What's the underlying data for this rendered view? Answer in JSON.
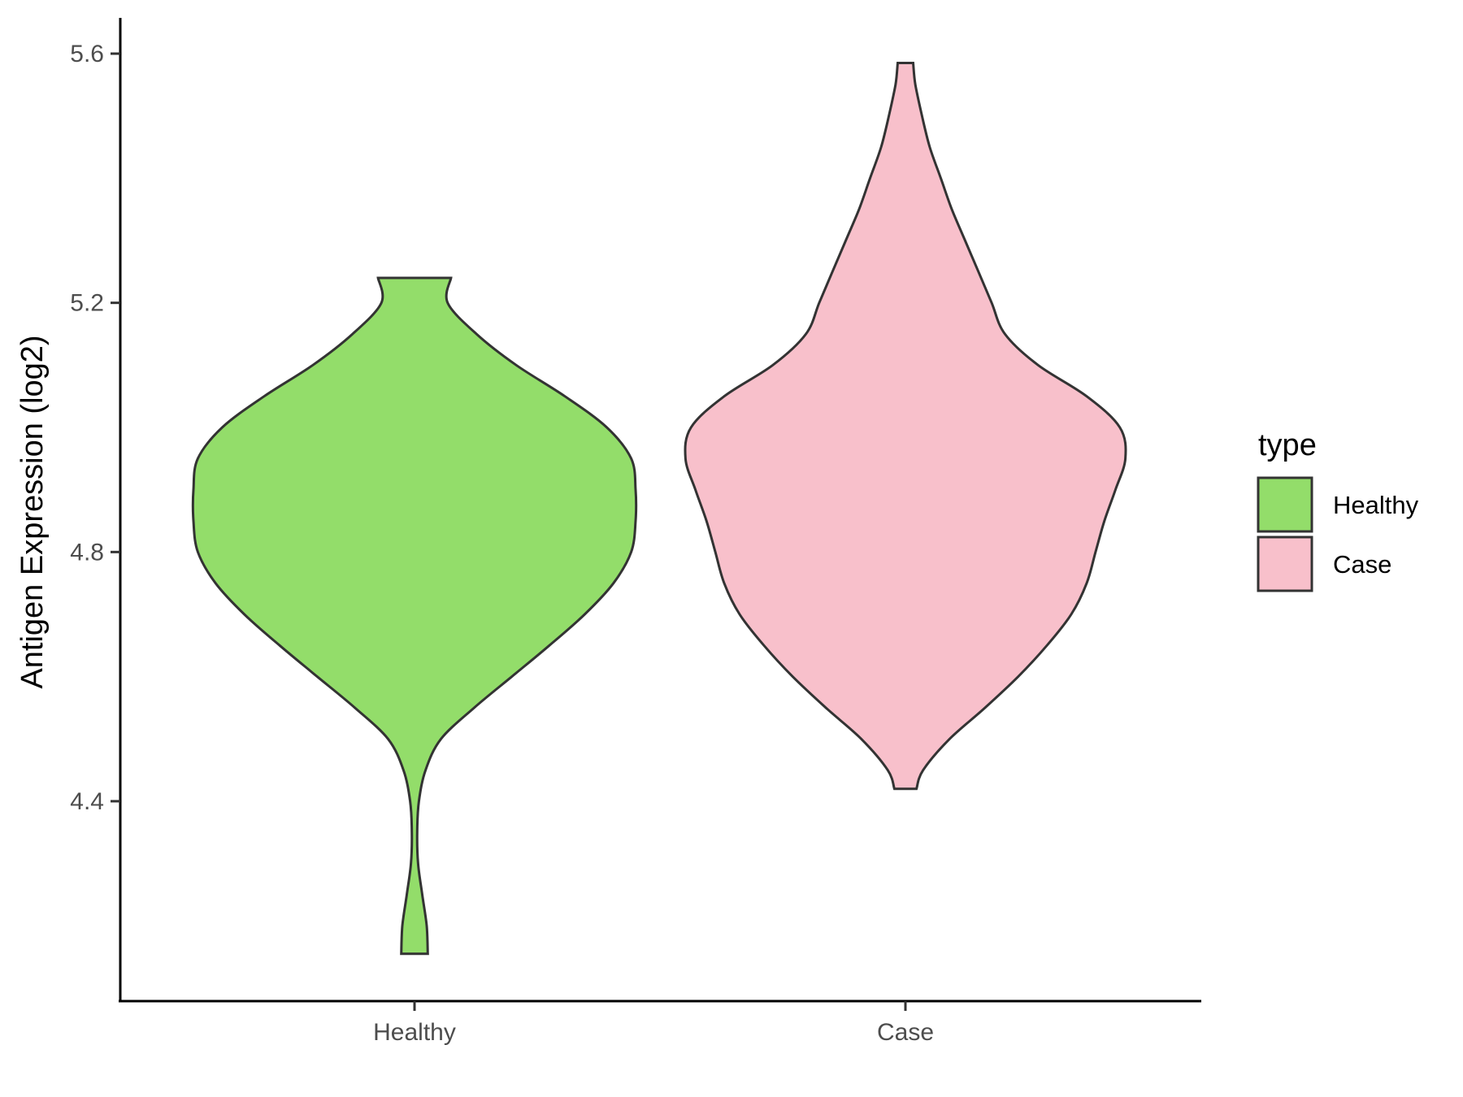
{
  "chart_data": {
    "type": "violin",
    "title": "",
    "xlabel": "",
    "ylabel": "Antigen Expression (log2)",
    "categories": [
      "Healthy",
      "Case"
    ],
    "ylim": [
      4.1,
      5.66
    ],
    "yticks": [
      4.4,
      4.8,
      5.2,
      5.6
    ],
    "ytick_labels": [
      "4.4",
      "4.8",
      "5.2",
      "5.6"
    ],
    "grid": false,
    "legend": {
      "title": "type",
      "position": "right",
      "entries": [
        {
          "label": "Healthy",
          "color": "#93dd6a"
        },
        {
          "label": "Case",
          "color": "#f8c0cb"
        }
      ]
    },
    "series": [
      {
        "category": "Healthy",
        "color": "#93dd6a",
        "min": 4.155,
        "max": 5.24,
        "density": [
          [
            4.155,
            0.06
          ],
          [
            4.2,
            0.055
          ],
          [
            4.25,
            0.035
          ],
          [
            4.3,
            0.016
          ],
          [
            4.35,
            0.012
          ],
          [
            4.4,
            0.02
          ],
          [
            4.45,
            0.05
          ],
          [
            4.5,
            0.12
          ],
          [
            4.55,
            0.27
          ],
          [
            4.6,
            0.44
          ],
          [
            4.65,
            0.61
          ],
          [
            4.7,
            0.77
          ],
          [
            4.75,
            0.9
          ],
          [
            4.8,
            0.98
          ],
          [
            4.85,
            1.0
          ],
          [
            4.9,
            1.0
          ],
          [
            4.95,
            0.98
          ],
          [
            5.0,
            0.87
          ],
          [
            5.05,
            0.68
          ],
          [
            5.1,
            0.46
          ],
          [
            5.15,
            0.28
          ],
          [
            5.2,
            0.15
          ],
          [
            5.24,
            0.165
          ]
        ]
      },
      {
        "category": "Case",
        "color": "#f8c0cb",
        "min": 4.42,
        "max": 5.585,
        "density": [
          [
            4.42,
            0.05
          ],
          [
            4.45,
            0.08
          ],
          [
            4.5,
            0.2
          ],
          [
            4.55,
            0.36
          ],
          [
            4.6,
            0.51
          ],
          [
            4.65,
            0.64
          ],
          [
            4.7,
            0.75
          ],
          [
            4.75,
            0.82
          ],
          [
            4.8,
            0.86
          ],
          [
            4.85,
            0.9
          ],
          [
            4.9,
            0.95
          ],
          [
            4.95,
            0.995
          ],
          [
            5.0,
            0.97
          ],
          [
            5.05,
            0.82
          ],
          [
            5.1,
            0.6
          ],
          [
            5.15,
            0.45
          ],
          [
            5.2,
            0.39
          ],
          [
            5.25,
            0.33
          ],
          [
            5.3,
            0.27
          ],
          [
            5.35,
            0.21
          ],
          [
            5.4,
            0.16
          ],
          [
            5.45,
            0.11
          ],
          [
            5.5,
            0.075
          ],
          [
            5.55,
            0.045
          ],
          [
            5.585,
            0.035
          ]
        ]
      }
    ]
  }
}
